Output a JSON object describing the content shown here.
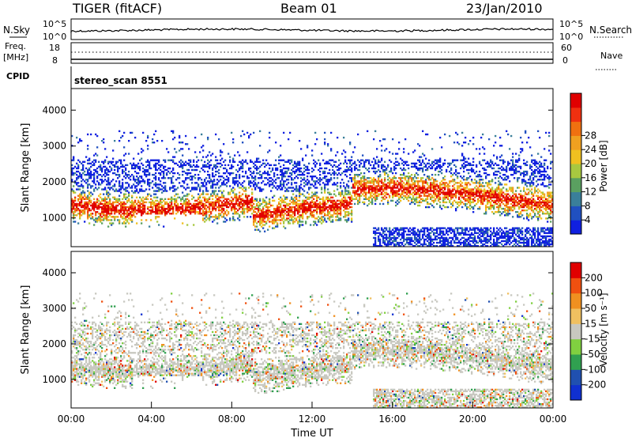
{
  "header": {
    "station": "TIGER (fitACF)",
    "beam": "Beam 01",
    "date": "23/Jan/2010"
  },
  "noise_panel": {
    "left_label": "N.Sky",
    "right_label": "N.Search",
    "tick_top": "10^5",
    "tick_bottom": "10^0"
  },
  "freq_panel": {
    "left_label_1": "Freq.",
    "left_label_2": "[MHz]",
    "left_tick_top": "18",
    "left_tick_bottom": "8",
    "right_label": "Nave",
    "right_tick_top": "60",
    "right_tick_bottom": "0"
  },
  "cpid": {
    "label": "CPID",
    "value": "stereo_scan 8551"
  },
  "chart_data": [
    {
      "type": "heatmap",
      "name": "power",
      "ylabel": "Slant Range [km]",
      "ylim": [
        200,
        4600
      ],
      "yticks": [
        "1000",
        "2000",
        "3000",
        "4000"
      ],
      "xlim": [
        0,
        24
      ],
      "colorbar": {
        "label": "Power [dB]",
        "ticks": [
          "4",
          "8",
          "12",
          "16",
          "20",
          "24",
          "28"
        ],
        "colors": [
          "#1020e0",
          "#2050c0",
          "#3a7f9a",
          "#5aa060",
          "#a8c840",
          "#f0c020",
          "#f0a020",
          "#f07010",
          "#f03010",
          "#e00000"
        ]
      }
    },
    {
      "type": "heatmap",
      "name": "velocity",
      "ylabel": "Slant Range [km]",
      "ylim": [
        200,
        4600
      ],
      "yticks": [
        "1000",
        "2000",
        "3000",
        "4000"
      ],
      "xlim": [
        0,
        24
      ],
      "xticks": [
        "00:00",
        "04:00",
        "08:00",
        "12:00",
        "16:00",
        "20:00",
        "00:00"
      ],
      "xlabel": "Time UT",
      "colorbar": {
        "label": "Velocity [m s⁻¹]",
        "ticks": [
          "200",
          "100",
          "50",
          "15",
          "-15",
          "-50",
          "-100",
          "-200"
        ],
        "colors": [
          "#1030d0",
          "#2050b0",
          "#30a050",
          "#80d040",
          "#c8c8c0",
          "#f0c060",
          "#f09020",
          "#f05010",
          "#e00000"
        ]
      }
    }
  ]
}
